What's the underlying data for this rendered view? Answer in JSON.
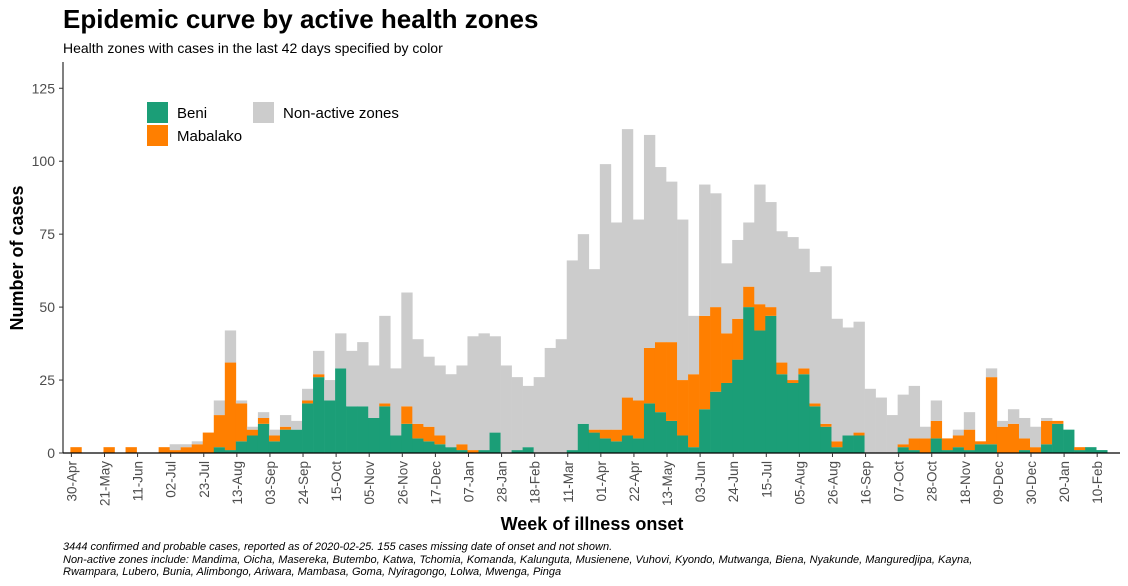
{
  "title": "Epidemic curve by active health zones",
  "subtitle": "Health zones with cases in the last 42 days specified by color",
  "notes": [
    "3444 confirmed and probable cases, reported as of 2020-02-25. 155 cases missing date of onset and not shown.",
    "Non-active zones include: Mandima, Oicha, Masereka, Butembo, Katwa, Tchomia, Komanda, Kalunguta, Musienene, Vuhovi, Kyondo, Mutwanga, Biena, Nyakunde, Manguredjipa, Kayna,",
    "Rwampara, Lubero, Bunia, Alimbongo, Ariwara, Mambasa, Goma, Nyiragongo, Lolwa, Mwenga, Pinga"
  ],
  "chart_data": {
    "type": "bar",
    "stacked": true,
    "title": "Epidemic curve by active health zones",
    "xlabel": "Week of illness onset",
    "ylabel": "Number of cases",
    "ylim": [
      0,
      134
    ],
    "yticks": [
      0,
      25,
      50,
      75,
      100,
      125
    ],
    "grid": false,
    "legend_position": "top-left",
    "xtick_labels": [
      "30-Apr",
      "21-May",
      "11-Jun",
      "02-Jul",
      "23-Jul",
      "13-Aug",
      "03-Sep",
      "24-Sep",
      "15-Oct",
      "05-Nov",
      "26-Nov",
      "17-Dec",
      "07-Jan",
      "28-Jan",
      "18-Feb",
      "11-Mar",
      "01-Apr",
      "22-Apr",
      "13-May",
      "03-Jun",
      "24-Jun",
      "15-Jul",
      "05-Aug",
      "26-Aug",
      "16-Sep",
      "07-Oct",
      "28-Oct",
      "18-Nov",
      "09-Dec",
      "30-Dec",
      "20-Jan",
      "10-Feb"
    ],
    "categories": [
      "2018-04-30",
      "2018-05-07",
      "2018-05-14",
      "2018-05-21",
      "2018-05-28",
      "2018-06-04",
      "2018-06-11",
      "2018-06-18",
      "2018-06-25",
      "2018-07-02",
      "2018-07-09",
      "2018-07-16",
      "2018-07-23",
      "2018-07-30",
      "2018-08-06",
      "2018-08-13",
      "2018-08-20",
      "2018-08-27",
      "2018-09-03",
      "2018-09-10",
      "2018-09-17",
      "2018-09-24",
      "2018-10-01",
      "2018-10-08",
      "2018-10-15",
      "2018-10-22",
      "2018-10-29",
      "2018-11-05",
      "2018-11-12",
      "2018-11-19",
      "2018-11-26",
      "2018-12-03",
      "2018-12-10",
      "2018-12-17",
      "2018-12-24",
      "2018-12-31",
      "2019-01-07",
      "2019-01-14",
      "2019-01-21",
      "2019-01-28",
      "2019-02-04",
      "2019-02-11",
      "2019-02-18",
      "2019-02-25",
      "2019-03-04",
      "2019-03-11",
      "2019-03-18",
      "2019-03-25",
      "2019-04-01",
      "2019-04-08",
      "2019-04-15",
      "2019-04-22",
      "2019-04-29",
      "2019-05-06",
      "2019-05-13",
      "2019-05-20",
      "2019-05-27",
      "2019-06-03",
      "2019-06-10",
      "2019-06-17",
      "2019-06-24",
      "2019-07-01",
      "2019-07-08",
      "2019-07-15",
      "2019-07-22",
      "2019-07-29",
      "2019-08-05",
      "2019-08-12",
      "2019-08-19",
      "2019-08-26",
      "2019-09-02",
      "2019-09-09",
      "2019-09-16",
      "2019-09-23",
      "2019-09-30",
      "2019-10-07",
      "2019-10-14",
      "2019-10-21",
      "2019-10-28",
      "2019-11-04",
      "2019-11-11",
      "2019-11-18",
      "2019-11-25",
      "2019-12-02",
      "2019-12-09",
      "2019-12-16",
      "2019-12-23",
      "2019-12-30",
      "2020-01-06",
      "2020-01-13",
      "2020-01-20",
      "2020-01-27",
      "2020-02-03",
      "2020-02-10"
    ],
    "series": [
      {
        "name": "Beni",
        "color": "#1b9e77",
        "values": [
          0,
          0,
          0,
          0,
          0,
          0,
          0,
          0,
          0,
          0,
          0,
          0,
          0,
          2,
          1,
          4,
          6,
          10,
          4,
          8,
          8,
          17,
          26,
          18,
          29,
          16,
          16,
          12,
          16,
          6,
          10,
          5,
          4,
          3,
          2,
          1,
          0,
          1,
          7,
          0,
          1,
          2,
          0,
          0,
          0,
          1,
          10,
          7,
          5,
          4,
          6,
          5,
          17,
          14,
          11,
          6,
          2,
          15,
          21,
          24,
          32,
          50,
          42,
          47,
          27,
          24,
          27,
          16,
          9,
          2,
          6,
          6,
          0,
          0,
          0,
          2,
          1,
          0,
          5,
          1,
          2,
          1,
          3,
          3,
          0,
          0,
          1,
          0,
          3,
          10,
          8,
          1,
          2,
          1
        ]
      },
      {
        "name": "Mabalako",
        "color": "#ff7f00",
        "values": [
          2,
          0,
          0,
          2,
          0,
          2,
          0,
          0,
          2,
          1,
          2,
          3,
          7,
          11,
          30,
          13,
          2,
          2,
          2,
          1,
          0,
          1,
          1,
          0,
          0,
          0,
          0,
          0,
          1,
          0,
          6,
          5,
          5,
          3,
          0,
          2,
          1,
          0,
          0,
          0,
          0,
          0,
          0,
          0,
          0,
          0,
          0,
          1,
          3,
          4,
          13,
          13,
          19,
          24,
          27,
          19,
          25,
          32,
          29,
          17,
          14,
          7,
          9,
          3,
          4,
          1,
          2,
          1,
          1,
          2,
          0,
          1,
          0,
          0,
          0,
          1,
          4,
          5,
          6,
          4,
          4,
          7,
          1,
          23,
          9,
          10,
          4,
          2,
          8,
          1,
          0,
          1,
          0,
          0
        ]
      },
      {
        "name": "Non-active zones",
        "color": "#cccccc",
        "values": [
          0,
          0,
          0,
          0,
          0,
          0,
          0,
          0,
          0,
          2,
          1,
          1,
          0,
          5,
          11,
          1,
          1,
          2,
          2,
          4,
          3,
          4,
          8,
          7,
          12,
          19,
          22,
          18,
          30,
          23,
          39,
          29,
          24,
          24,
          25,
          27,
          39,
          40,
          33,
          30,
          25,
          21,
          26,
          36,
          39,
          65,
          65,
          55,
          91,
          71,
          92,
          62,
          73,
          60,
          55,
          55,
          20,
          45,
          39,
          24,
          27,
          22,
          41,
          36,
          45,
          49,
          41,
          45,
          54,
          42,
          37,
          38,
          22,
          19,
          13,
          17,
          18,
          4,
          7,
          0,
          2,
          6,
          0,
          3,
          2,
          5,
          7,
          7,
          1,
          0,
          0,
          0,
          0,
          0
        ]
      }
    ]
  }
}
